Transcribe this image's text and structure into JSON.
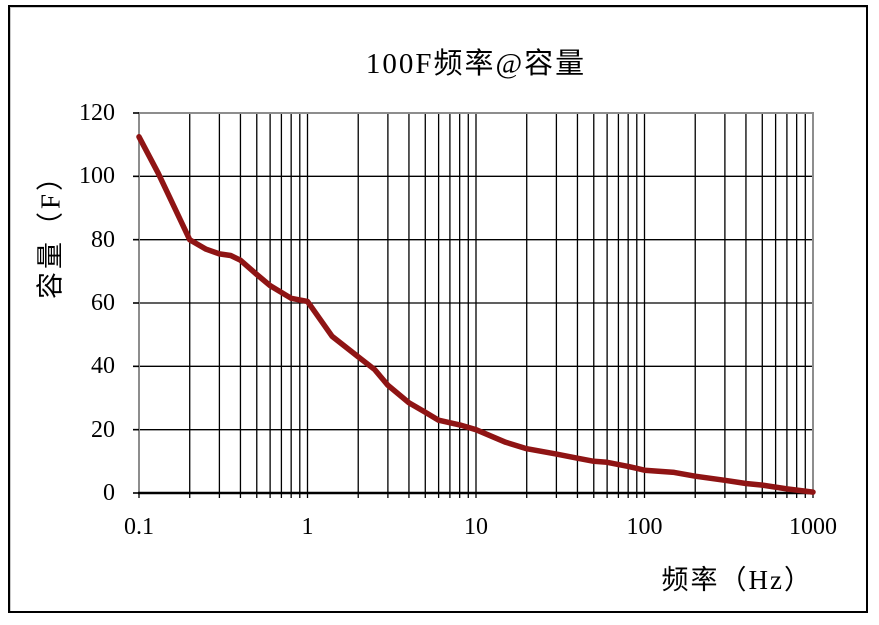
{
  "chart_data": {
    "type": "line",
    "title": "100F频率@容量",
    "xlabel": "频率（Hz）",
    "ylabel": "容量（F）",
    "x_scale": "log",
    "xlim": [
      0.1,
      1000
    ],
    "ylim": [
      0,
      120
    ],
    "x_ticks": {
      "values": [
        0.1,
        1,
        10,
        100,
        1000
      ],
      "labels": [
        "0.1",
        "1",
        "10",
        "100",
        "1000"
      ]
    },
    "y_ticks": {
      "values": [
        0,
        20,
        40,
        60,
        80,
        100,
        120
      ],
      "labels": [
        "0",
        "20",
        "40",
        "60",
        "80",
        "100",
        "120"
      ]
    },
    "grid": {
      "horizontal": true,
      "vertical_log_minor": true
    },
    "legend": false,
    "series": [
      {
        "name": "容量",
        "x": [
          0.1,
          0.13,
          0.15,
          0.2,
          0.25,
          0.3,
          0.35,
          0.4,
          0.5,
          0.6,
          0.8,
          1,
          1.4,
          2,
          2.5,
          3,
          4,
          5,
          6,
          8,
          10,
          15,
          20,
          30,
          40,
          50,
          60,
          80,
          100,
          150,
          200,
          300,
          400,
          500,
          700,
          1000
        ],
        "y": [
          112.5,
          101,
          94,
          80,
          77,
          75.5,
          75,
          73.5,
          69,
          65.5,
          61.5,
          60.5,
          49.5,
          43,
          39,
          34,
          28.5,
          25.5,
          23,
          21.5,
          20,
          16,
          14,
          12.3,
          11,
          10,
          9.7,
          8.4,
          7.2,
          6.5,
          5.3,
          4,
          3,
          2.5,
          1.3,
          0.3
        ]
      }
    ]
  },
  "colors": {
    "line": "#8f1414",
    "grid": "#000000",
    "plot_border": "#8d8d8d",
    "axis": "#000000",
    "outer_border": "#000000",
    "background": "#ffffff",
    "text": "#000000"
  }
}
